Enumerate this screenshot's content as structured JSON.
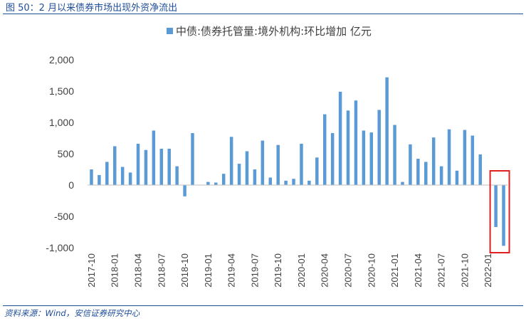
{
  "figure": {
    "title": "图 50：2 月以来债券市场出现外资净流出",
    "source": "资料来源：Wind，安信证券研究中心"
  },
  "chart_data": {
    "type": "bar",
    "title": "",
    "legend": {
      "entries": [
        "中债:债券托管量:境外机构:环比增加 亿元"
      ],
      "placement": "top"
    },
    "xlabel": "",
    "ylabel": "",
    "ylim": [
      -1000,
      2000
    ],
    "yticks": [
      -1000,
      -500,
      0,
      500,
      1000,
      1500,
      2000
    ],
    "ytick_labels": [
      "-1,000",
      "-500",
      "0",
      "500",
      "1,000",
      "1,500",
      "2,000"
    ],
    "grid": false,
    "categories": [
      "2017-10",
      "2017-11",
      "2017-12",
      "2018-01",
      "2018-02",
      "2018-03",
      "2018-04",
      "2018-05",
      "2018-06",
      "2018-07",
      "2018-08",
      "2018-09",
      "2018-10",
      "2018-11",
      "2018-12",
      "2019-01",
      "2019-02",
      "2019-03",
      "2019-04",
      "2019-05",
      "2019-06",
      "2019-07",
      "2019-08",
      "2019-09",
      "2019-10",
      "2019-11",
      "2019-12",
      "2020-01",
      "2020-02",
      "2020-03",
      "2020-04",
      "2020-05",
      "2020-06",
      "2020-07",
      "2020-08",
      "2020-09",
      "2020-10",
      "2020-11",
      "2020-12",
      "2021-01",
      "2021-02",
      "2021-03",
      "2021-04",
      "2021-05",
      "2021-06",
      "2021-07",
      "2021-08",
      "2021-09",
      "2021-10",
      "2021-11",
      "2021-12",
      "2022-01",
      "2022-02",
      "2022-03"
    ],
    "xtick_labels": [
      "2017-10",
      "2018-01",
      "2018-04",
      "2018-07",
      "2018-10",
      "2019-01",
      "2019-04",
      "2019-07",
      "2019-10",
      "2020-01",
      "2020-04",
      "2020-07",
      "2020-10",
      "2021-01",
      "2021-04",
      "2021-07",
      "2021-10",
      "2022-01"
    ],
    "series": [
      {
        "name": "中债:债券托管量:境外机构:环比增加 亿元",
        "color": "#5b9bd5",
        "values": [
          250,
          160,
          370,
          620,
          290,
          200,
          660,
          560,
          870,
          580,
          580,
          300,
          -180,
          830,
          0,
          50,
          40,
          180,
          770,
          340,
          540,
          250,
          710,
          120,
          640,
          70,
          100,
          660,
          70,
          440,
          1130,
          830,
          1490,
          1190,
          1350,
          870,
          840,
          1200,
          1720,
          960,
          50,
          650,
          420,
          370,
          760,
          300,
          890,
          230,
          880,
          790,
          490,
          0,
          -670,
          -970
        ]
      }
    ],
    "highlight": {
      "from": "2022-02",
      "to": "2022-03",
      "color": "#e02020"
    }
  }
}
